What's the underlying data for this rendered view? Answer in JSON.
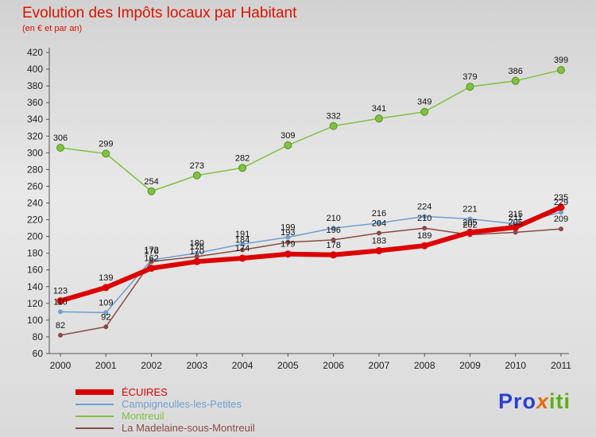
{
  "title": "Evolution des Impôts locaux par Habitant",
  "subtitle": "(en € et par an)",
  "logo": {
    "part1": "Pro",
    "part2": "x",
    "part3": "iti"
  },
  "chart_data": {
    "type": "line",
    "categories": [
      "2000",
      "2001",
      "2002",
      "2003",
      "2004",
      "2005",
      "2006",
      "2007",
      "2008",
      "2009",
      "2010",
      "2011"
    ],
    "ylim": [
      60,
      420
    ],
    "ytick_step": 20,
    "grid": false,
    "legend_position": "bottom-left",
    "series": [
      {
        "name": "ÉCUIRES",
        "color": "#dd0000",
        "width": 6,
        "values": [
          123,
          139,
          162,
          170,
          174,
          179,
          178,
          183,
          189,
          205,
          211,
          235
        ]
      },
      {
        "name": "Campigneulles-les-Petites",
        "color": "#6f9fd0",
        "width": 1.5,
        "values": [
          110,
          109,
          172,
          180,
          191,
          199,
          210,
          216,
          224,
          221,
          215,
          229
        ]
      },
      {
        "name": "Montreuil",
        "color": "#7fc241",
        "width": 1.5,
        "values": [
          306,
          299,
          254,
          273,
          282,
          309,
          332,
          341,
          349,
          379,
          386,
          399
        ]
      },
      {
        "name": "La Madelaine-sous-Montreuil",
        "color": "#8a4a45",
        "width": 1.5,
        "values": [
          82,
          92,
          170,
          176,
          184,
          193,
          196,
          204,
          210,
          202,
          205,
          209
        ]
      }
    ]
  }
}
